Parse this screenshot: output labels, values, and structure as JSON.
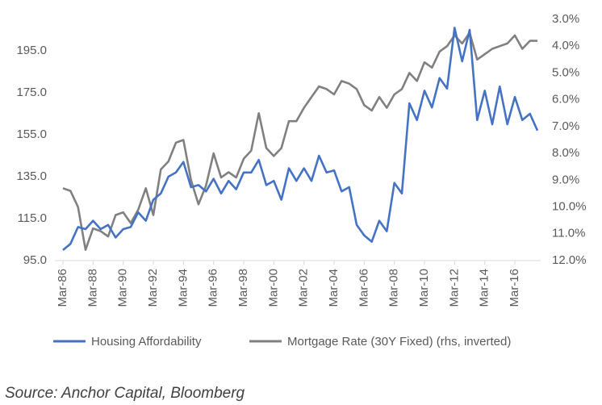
{
  "chart_data": {
    "type": "line",
    "categories": [
      "Mar-86",
      null,
      null,
      null,
      "Mar-88",
      null,
      null,
      null,
      "Mar-90",
      null,
      null,
      null,
      "Mar-92",
      null,
      null,
      null,
      "Mar-94",
      null,
      null,
      null,
      "Mar-96",
      null,
      null,
      null,
      "Mar-98",
      null,
      null,
      null,
      "Mar-00",
      null,
      null,
      null,
      "Mar-02",
      null,
      null,
      null,
      "Mar-04",
      null,
      null,
      null,
      "Mar-06",
      null,
      null,
      null,
      "Mar-08",
      null,
      null,
      null,
      "Mar-10",
      null,
      null,
      null,
      "Mar-12",
      null,
      null,
      null,
      "Mar-14",
      null,
      null,
      null,
      "Mar-16",
      null,
      null,
      null
    ],
    "series": [
      {
        "name": "Housing Affordability",
        "color": "#4472c4",
        "axis": "y",
        "values": [
          100,
          103,
          111,
          110,
          114,
          110,
          112,
          106,
          110,
          111,
          118,
          114,
          124,
          127,
          135,
          137,
          142,
          130,
          131,
          128,
          134,
          127,
          133,
          129,
          137,
          137,
          143,
          131,
          133,
          124,
          139,
          133,
          139,
          133,
          145,
          137,
          138,
          128,
          130,
          112,
          107,
          104,
          114,
          109,
          132,
          127,
          170,
          162,
          176,
          168,
          182,
          177,
          206,
          190,
          205,
          162,
          176,
          160,
          178,
          160,
          173,
          162,
          165,
          157
        ]
      },
      {
        "name": "Mortgage Rate (30Y Fixed) (rhs, inverted)",
        "color": "#808080",
        "axis": "y2",
        "values": [
          9.3,
          9.4,
          10.0,
          11.6,
          10.8,
          10.9,
          11.1,
          10.3,
          10.2,
          10.6,
          10.1,
          9.3,
          10.3,
          8.6,
          8.3,
          7.6,
          7.5,
          9.0,
          9.9,
          9.2,
          8.0,
          8.9,
          8.7,
          8.9,
          8.2,
          7.9,
          6.5,
          7.8,
          8.1,
          7.8,
          6.8,
          6.8,
          6.3,
          5.9,
          5.5,
          5.6,
          5.8,
          5.3,
          5.4,
          5.6,
          6.2,
          6.4,
          5.9,
          6.3,
          5.8,
          5.6,
          5.0,
          5.3,
          4.6,
          4.8,
          4.2,
          4.0,
          3.6,
          3.9,
          3.5,
          4.5,
          4.3,
          4.1,
          4.0,
          3.9,
          3.6,
          4.1,
          3.8,
          3.8
        ]
      }
    ],
    "ylim": [
      95,
      210
    ],
    "yticks": [
      {
        "value": 95,
        "label": "95.0"
      },
      {
        "value": 115,
        "label": "115.0"
      },
      {
        "value": 135,
        "label": "135.0"
      },
      {
        "value": 155,
        "label": "155.0"
      },
      {
        "value": 175,
        "label": "175.0"
      },
      {
        "value": 195,
        "label": "195.0"
      }
    ],
    "y2lim": [
      12,
      3
    ],
    "y2ticks": [
      {
        "value": 3,
        "label": "3.0%"
      },
      {
        "value": 4,
        "label": "4.0%"
      },
      {
        "value": 5,
        "label": "5.0%"
      },
      {
        "value": 6,
        "label": "6.0%"
      },
      {
        "value": 7,
        "label": "7.0%"
      },
      {
        "value": 8,
        "label": "8.0%"
      },
      {
        "value": 9,
        "label": "9.0%"
      },
      {
        "value": 10,
        "label": "10.0%"
      },
      {
        "value": 11,
        "label": "11.0%"
      },
      {
        "value": 12,
        "label": "12.0%"
      }
    ],
    "grid": false,
    "legend": "bottom",
    "source": "Source: Anchor Capital, Bloomberg"
  }
}
